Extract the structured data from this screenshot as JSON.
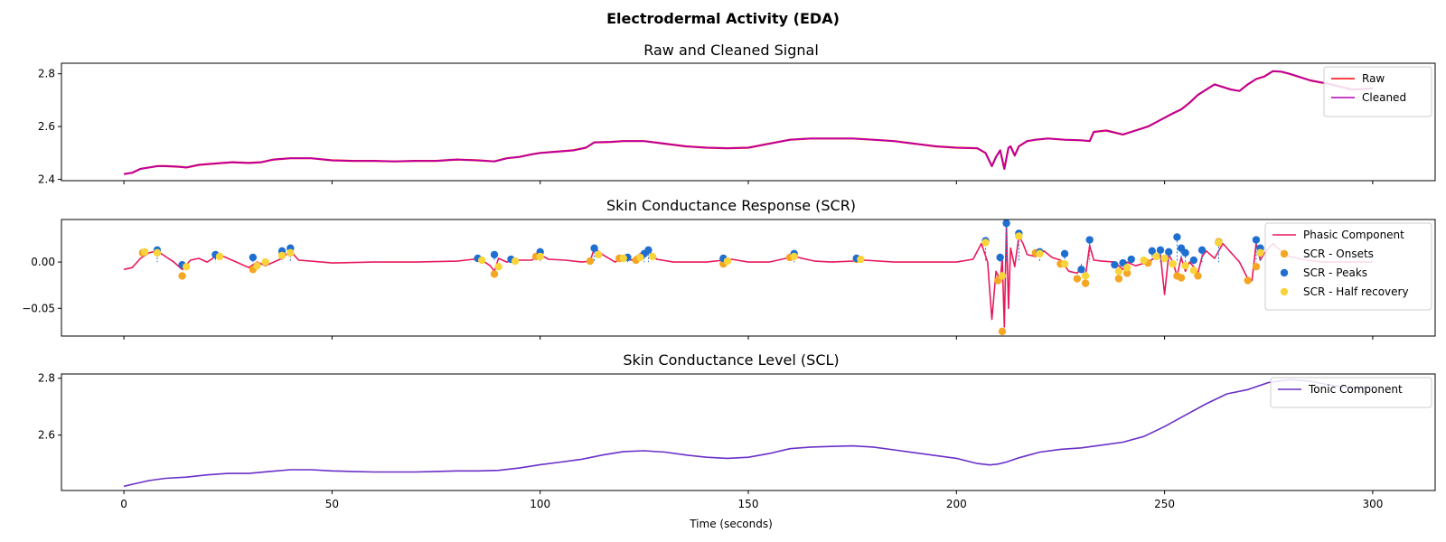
{
  "figure": {
    "title": "Electrodermal Activity (EDA)",
    "xlabel": "Time (seconds)",
    "xticks": [
      0,
      50,
      100,
      150,
      200,
      250,
      300
    ]
  },
  "chart_data": [
    {
      "type": "line",
      "title": "Raw and Cleaned Signal",
      "xlim": [
        -15,
        315
      ],
      "ylim": [
        2.395,
        2.84
      ],
      "yticks": [
        2.4,
        2.6,
        2.8
      ],
      "legend_position": "top-right",
      "series": [
        {
          "name": "Raw",
          "color": "#ff0000",
          "x": [
            0,
            2,
            4,
            6,
            8,
            10,
            13,
            15,
            18,
            22,
            26,
            30,
            33,
            36,
            40,
            45,
            50,
            55,
            60,
            65,
            70,
            75,
            80,
            85,
            89,
            92,
            95,
            98,
            100,
            104,
            108,
            111,
            113,
            117,
            120,
            125,
            130,
            135,
            140,
            145,
            150,
            155,
            160,
            165,
            170,
            175,
            180,
            185,
            190,
            195,
            200,
            205,
            207,
            208.5,
            209.5,
            210.5,
            211,
            211.5,
            212,
            212.5,
            213,
            214,
            215,
            216,
            217,
            219,
            222,
            226,
            230,
            232,
            233,
            236,
            240,
            243,
            246,
            249,
            252,
            254,
            256,
            258,
            260,
            262,
            264,
            266,
            268,
            270,
            272,
            274,
            276,
            278,
            280,
            285,
            290,
            295,
            300
          ],
          "values": [
            2.42,
            2.425,
            2.44,
            2.445,
            2.45,
            2.45,
            2.448,
            2.445,
            2.455,
            2.46,
            2.465,
            2.462,
            2.465,
            2.475,
            2.48,
            2.48,
            2.472,
            2.47,
            2.47,
            2.468,
            2.47,
            2.47,
            2.475,
            2.472,
            2.468,
            2.48,
            2.485,
            2.495,
            2.5,
            2.505,
            2.51,
            2.52,
            2.54,
            2.542,
            2.545,
            2.545,
            2.535,
            2.525,
            2.52,
            2.518,
            2.52,
            2.535,
            2.55,
            2.555,
            2.555,
            2.555,
            2.55,
            2.545,
            2.535,
            2.525,
            2.52,
            2.518,
            2.5,
            2.45,
            2.485,
            2.51,
            2.475,
            2.44,
            2.48,
            2.52,
            2.525,
            2.49,
            2.525,
            2.535,
            2.545,
            2.55,
            2.555,
            2.55,
            2.548,
            2.545,
            2.58,
            2.585,
            2.57,
            2.585,
            2.6,
            2.625,
            2.65,
            2.665,
            2.69,
            2.72,
            2.74,
            2.76,
            2.75,
            2.74,
            2.735,
            2.76,
            2.78,
            2.79,
            2.81,
            2.808,
            2.8,
            2.775,
            2.76,
            2.74,
            2.745
          ]
        },
        {
          "name": "Cleaned",
          "color": "#b300b3",
          "x": [
            0,
            2,
            4,
            6,
            8,
            10,
            13,
            15,
            18,
            22,
            26,
            30,
            33,
            36,
            40,
            45,
            50,
            55,
            60,
            65,
            70,
            75,
            80,
            85,
            89,
            92,
            95,
            98,
            100,
            104,
            108,
            111,
            113,
            117,
            120,
            125,
            130,
            135,
            140,
            145,
            150,
            155,
            160,
            165,
            170,
            175,
            180,
            185,
            190,
            195,
            200,
            205,
            207,
            208.5,
            209.5,
            210.5,
            211,
            211.5,
            212,
            212.5,
            213,
            214,
            215,
            216,
            217,
            219,
            222,
            226,
            230,
            232,
            233,
            236,
            240,
            243,
            246,
            249,
            252,
            254,
            256,
            258,
            260,
            262,
            264,
            266,
            268,
            270,
            272,
            274,
            276,
            278,
            280,
            285,
            290,
            295,
            300
          ],
          "values": [
            2.42,
            2.425,
            2.44,
            2.445,
            2.45,
            2.45,
            2.448,
            2.445,
            2.455,
            2.46,
            2.465,
            2.462,
            2.465,
            2.475,
            2.48,
            2.48,
            2.472,
            2.47,
            2.47,
            2.468,
            2.47,
            2.47,
            2.475,
            2.472,
            2.468,
            2.48,
            2.485,
            2.495,
            2.5,
            2.505,
            2.51,
            2.52,
            2.54,
            2.542,
            2.545,
            2.545,
            2.535,
            2.525,
            2.52,
            2.518,
            2.52,
            2.535,
            2.55,
            2.555,
            2.555,
            2.555,
            2.55,
            2.545,
            2.535,
            2.525,
            2.52,
            2.518,
            2.5,
            2.45,
            2.485,
            2.51,
            2.475,
            2.44,
            2.48,
            2.52,
            2.525,
            2.49,
            2.525,
            2.535,
            2.545,
            2.55,
            2.555,
            2.55,
            2.548,
            2.545,
            2.58,
            2.585,
            2.57,
            2.585,
            2.6,
            2.625,
            2.65,
            2.665,
            2.69,
            2.72,
            2.74,
            2.76,
            2.75,
            2.74,
            2.735,
            2.76,
            2.78,
            2.79,
            2.81,
            2.808,
            2.8,
            2.775,
            2.76,
            2.74,
            2.745
          ]
        }
      ]
    },
    {
      "type": "line",
      "title": "Skin Conductance Response (SCR)",
      "xlim": [
        -15,
        315
      ],
      "ylim": [
        -0.08,
        0.046
      ],
      "yticks": [
        -0.05,
        0.0
      ],
      "ytick_labels": [
        "−0.05",
        "0.00"
      ],
      "legend_position": "top-right",
      "series": [
        {
          "name": "Phasic Component",
          "color": "#e8195a",
          "x": [
            0,
            2,
            4,
            6,
            8,
            10,
            12,
            14,
            16,
            18,
            20,
            22,
            24,
            26,
            28,
            30,
            32,
            34,
            36,
            38,
            40,
            42,
            45,
            50,
            60,
            70,
            80,
            84,
            86,
            88,
            89,
            90,
            92,
            94,
            98,
            100,
            102,
            106,
            110,
            112,
            113,
            115,
            118,
            120,
            122,
            124,
            126,
            128,
            132,
            136,
            140,
            144,
            146,
            150,
            155,
            160,
            162,
            166,
            170,
            175,
            178,
            185,
            190,
            195,
            200,
            204,
            206,
            207.5,
            208.5,
            209.5,
            210.5,
            211,
            211.5,
            212,
            212.5,
            213,
            214,
            215,
            216,
            217,
            219,
            221,
            223,
            225,
            227,
            229,
            230,
            231,
            232,
            233,
            235,
            238,
            240,
            241,
            243,
            246,
            249,
            250,
            251,
            252,
            253,
            254,
            255,
            256,
            257,
            258,
            259,
            260,
            262,
            264,
            266,
            268,
            270,
            271,
            272,
            273,
            274,
            276,
            278,
            280,
            284,
            288,
            292,
            296,
            300
          ],
          "values": [
            -0.008,
            -0.006,
            0.004,
            0.01,
            0.012,
            0.006,
            0.0,
            -0.008,
            0.002,
            0.004,
            0.0,
            0.006,
            0.006,
            0.002,
            -0.002,
            -0.006,
            0.0,
            -0.004,
            0.0,
            0.004,
            0.012,
            0.002,
            0.001,
            -0.001,
            0.0,
            0.0,
            0.001,
            0.003,
            0.002,
            -0.004,
            -0.01,
            0.004,
            0.0,
            0.002,
            0.002,
            0.008,
            0.003,
            0.002,
            0.0,
            0.001,
            0.015,
            0.008,
            0.0,
            0.005,
            0.002,
            0.009,
            0.012,
            0.003,
            0.0,
            0.0,
            0.0,
            0.002,
            0.003,
            0.0,
            0.0,
            0.005,
            0.005,
            0.001,
            0.0,
            0.001,
            0.002,
            0.0,
            0.0,
            0.0,
            0.0,
            0.003,
            0.02,
            0.0,
            -0.062,
            -0.01,
            -0.02,
            0.004,
            -0.07,
            0.04,
            -0.05,
            0.015,
            -0.005,
            0.028,
            0.02,
            0.008,
            0.006,
            0.012,
            0.005,
            0.002,
            -0.01,
            -0.012,
            -0.006,
            -0.015,
            0.018,
            0.002,
            0.001,
            0.0,
            -0.008,
            0.0,
            -0.004,
            0.0,
            0.008,
            -0.035,
            0.008,
            0.0,
            -0.015,
            0.005,
            -0.01,
            0.0,
            -0.005,
            -0.012,
            0.006,
            0.012,
            0.004,
            0.02,
            0.01,
            0.0,
            -0.018,
            -0.02,
            0.02,
            0.002,
            0.01,
            0.02,
            0.012,
            0.006,
            0.002,
            0.0,
            0.0,
            0.0,
            0.0
          ]
        }
      ],
      "markers": [
        {
          "name": "SCR - Onsets",
          "color": "#f5a623",
          "x": [
            4.5,
            14,
            31,
            38,
            89,
            99,
            112,
            119,
            123,
            144,
            160,
            176,
            210,
            211,
            215,
            219,
            225,
            229,
            231,
            239,
            241,
            246,
            253,
            254,
            258,
            263,
            270,
            272
          ],
          "values": [
            0.01,
            -0.015,
            -0.008,
            0.008,
            -0.013,
            0.006,
            0.001,
            0.004,
            0.002,
            -0.002,
            0.005,
            0.003,
            -0.02,
            -0.075,
            0.028,
            0.01,
            -0.002,
            -0.018,
            -0.023,
            -0.018,
            -0.012,
            -0.001,
            -0.015,
            -0.017,
            -0.015,
            0.022,
            -0.02,
            -0.005
          ]
        },
        {
          "name": "SCR - Peaks",
          "color": "#1f6fd1",
          "x": [
            8,
            14,
            22,
            31,
            38,
            40,
            85,
            89,
            93,
            100,
            113,
            121,
            125,
            126,
            144,
            161,
            176,
            207,
            210.5,
            212,
            215,
            220,
            226,
            230,
            232,
            238,
            240,
            242,
            247,
            249,
            251,
            253,
            254,
            255,
            257,
            259,
            263,
            272,
            273
          ],
          "values": [
            0.013,
            -0.003,
            0.008,
            0.005,
            0.012,
            0.015,
            0.004,
            0.008,
            0.003,
            0.011,
            0.015,
            0.005,
            0.009,
            0.013,
            0.004,
            0.009,
            0.004,
            0.023,
            0.005,
            0.042,
            0.031,
            0.011,
            0.009,
            -0.008,
            0.024,
            -0.003,
            -0.001,
            0.003,
            0.012,
            0.013,
            0.011,
            0.027,
            0.015,
            0.01,
            0.002,
            0.013,
            0.021,
            0.024,
            0.015
          ]
        },
        {
          "name": "SCR - Half recovery",
          "color": "#f9d43a",
          "x": [
            5,
            8,
            15,
            23,
            32,
            34,
            38,
            40,
            86,
            90,
            94,
            100,
            114,
            120,
            124,
            127,
            145,
            161,
            177,
            207,
            211,
            215,
            220,
            226,
            231,
            239,
            241,
            245,
            248,
            250,
            252,
            255,
            257,
            263,
            273
          ],
          "values": [
            0.011,
            0.01,
            -0.005,
            0.006,
            -0.004,
            0.0,
            0.007,
            0.01,
            0.002,
            -0.005,
            0.001,
            0.006,
            0.008,
            0.004,
            0.005,
            0.006,
            0.001,
            0.006,
            0.003,
            0.021,
            -0.015,
            0.028,
            0.009,
            -0.002,
            -0.015,
            -0.01,
            -0.006,
            0.002,
            0.006,
            0.004,
            -0.002,
            -0.004,
            -0.009,
            0.021,
            0.01
          ]
        }
      ]
    },
    {
      "type": "line",
      "title": "Skin Conductance Level (SCL)",
      "xlim": [
        -15,
        315
      ],
      "ylim": [
        2.405,
        2.815
      ],
      "yticks": [
        2.6,
        2.8
      ],
      "legend_position": "top-right",
      "series": [
        {
          "name": "Tonic Component",
          "color": "#6a2fc9",
          "x": [
            0,
            3,
            6,
            10,
            15,
            20,
            25,
            30,
            35,
            40,
            45,
            50,
            55,
            60,
            65,
            70,
            75,
            80,
            85,
            90,
            95,
            100,
            105,
            110,
            115,
            120,
            125,
            130,
            135,
            140,
            145,
            150,
            155,
            160,
            165,
            170,
            175,
            180,
            185,
            190,
            195,
            200,
            205,
            208,
            210,
            212,
            215,
            220,
            225,
            230,
            235,
            240,
            245,
            250,
            255,
            260,
            265,
            270,
            275,
            280,
            285,
            290,
            295,
            300
          ],
          "values": [
            2.42,
            2.43,
            2.44,
            2.448,
            2.452,
            2.46,
            2.465,
            2.465,
            2.472,
            2.478,
            2.478,
            2.474,
            2.472,
            2.47,
            2.47,
            2.47,
            2.472,
            2.474,
            2.474,
            2.476,
            2.484,
            2.496,
            2.505,
            2.515,
            2.53,
            2.542,
            2.545,
            2.54,
            2.53,
            2.522,
            2.518,
            2.522,
            2.535,
            2.552,
            2.558,
            2.56,
            2.562,
            2.558,
            2.548,
            2.538,
            2.528,
            2.518,
            2.5,
            2.495,
            2.498,
            2.505,
            2.52,
            2.54,
            2.55,
            2.555,
            2.565,
            2.575,
            2.595,
            2.63,
            2.67,
            2.71,
            2.745,
            2.76,
            2.785,
            2.795,
            2.79,
            2.775,
            2.765,
            2.77
          ]
        }
      ]
    }
  ]
}
